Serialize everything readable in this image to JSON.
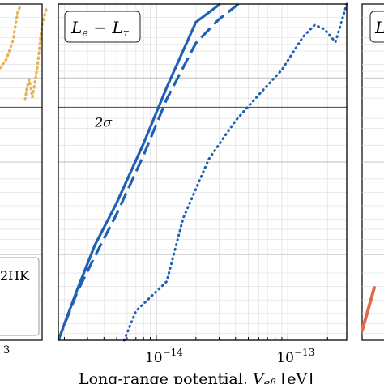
{
  "colors": {
    "blue": "#1f5fb4",
    "orange_dotted": "#e3b25a",
    "orange_solid": "#e2694c",
    "grid_major": "#bdbdbd",
    "grid_minor": "#e4e4e4",
    "frame": "#000000"
  },
  "chart_data": [
    {
      "type": "line",
      "panel": "center",
      "legend_label": "L_e − L_τ",
      "annotation": "2σ",
      "xlabel": "Long-range potential, V_eβ [eV]",
      "xscale": "log",
      "xlim": [
        1.8e-15,
        2.8e-13
      ],
      "x_tick_labels": [
        {
          "value": 1e-14,
          "mantissa": "10",
          "exponent": "−14"
        },
        {
          "value": 1e-13,
          "mantissa": "10",
          "exponent": "−13"
        }
      ],
      "ylim": [
        0,
        1
      ],
      "sigma_line_y": 0.693,
      "series": [
        {
          "style": "solid",
          "color": "#1f5fb4",
          "x": [
            1.8e-15,
            2.5e-15,
            3.4e-15,
            5e-15,
            8e-15,
            1.2e-14,
            2e-14,
            3.05e-14
          ],
          "y": [
            0.0,
            0.15,
            0.282,
            0.409,
            0.585,
            0.752,
            0.946,
            1.0
          ]
        },
        {
          "style": "dashed",
          "color": "#1f5fb4",
          "x": [
            1.8e-15,
            2.5e-15,
            3.4e-15,
            5e-15,
            8e-15,
            1.2e-14,
            2e-14,
            3e-14,
            4.2e-14
          ],
          "y": [
            0.0,
            0.143,
            0.249,
            0.376,
            0.55,
            0.717,
            0.884,
            0.955,
            1.0
          ]
        },
        {
          "style": "dotted",
          "color": "#1f5fb4",
          "x": [
            5.7e-15,
            7e-15,
            9e-15,
            1.2e-14,
            1.6e-14,
            2.5e-14,
            4e-14,
            6e-14,
            9e-14,
            1.3e-13,
            1.6e-13,
            1.9e-13,
            2.3e-13,
            2.8e-13
          ],
          "y": [
            0.0,
            0.087,
            0.128,
            0.175,
            0.363,
            0.538,
            0.653,
            0.73,
            0.804,
            0.902,
            0.938,
            0.925,
            0.887,
            1.0
          ]
        }
      ]
    },
    {
      "type": "line",
      "panel": "left (partially visible)",
      "legend_label": "2HK",
      "x_tick_labels": [
        {
          "exponent": "3"
        }
      ],
      "series": [
        {
          "style": "dotted",
          "color": "#e3b25a"
        }
      ]
    },
    {
      "type": "line",
      "panel": "right (partially visible)",
      "legend_label": "L",
      "series": [
        {
          "style": "solid",
          "color": "#e2694c"
        }
      ]
    }
  ]
}
